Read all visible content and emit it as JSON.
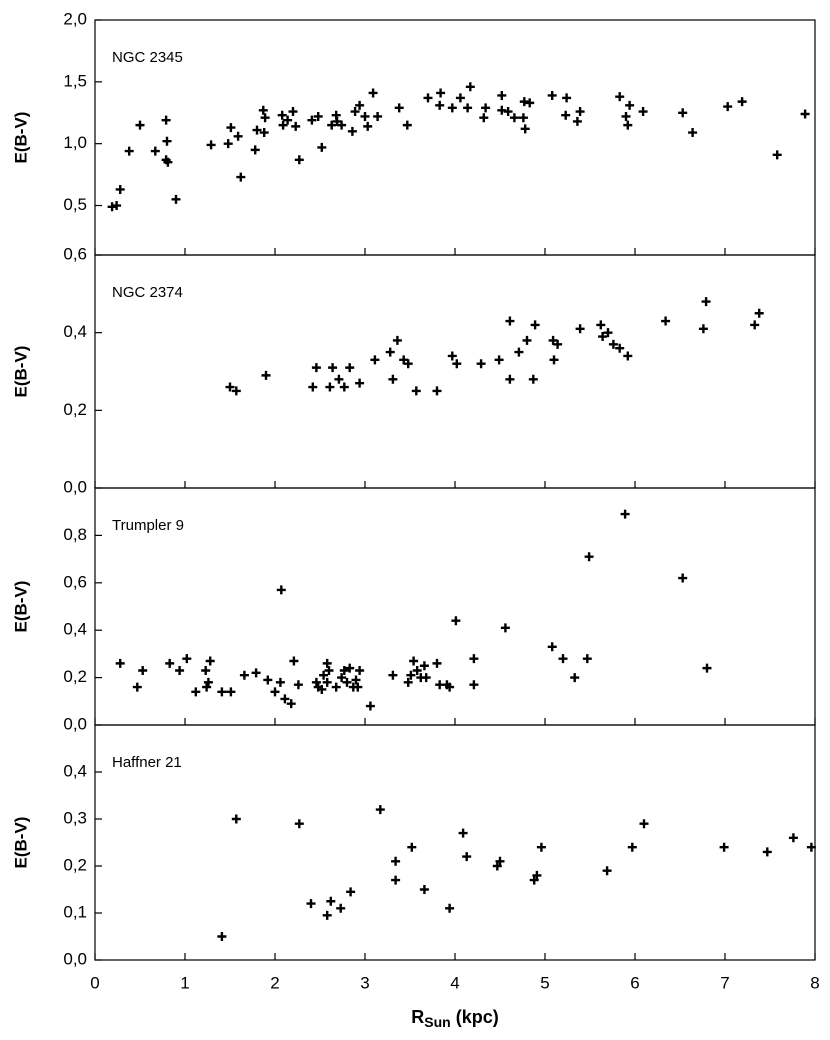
{
  "chart_data": [
    {
      "type": "scatter",
      "annotation": "NGC 2345",
      "ylabel": "E(B-V)",
      "xlim": [
        0,
        8
      ],
      "ylim": [
        0.1,
        2.0
      ],
      "yticks": [
        {
          "value": 0.5,
          "label": "0,5"
        },
        {
          "value": 1.0,
          "label": "1,0"
        },
        {
          "value": 1.5,
          "label": "1,5"
        },
        {
          "value": 2.0,
          "label": "2,0"
        }
      ],
      "color": "#000000",
      "x": [
        0.19,
        0.24,
        0.28,
        0.38,
        0.5,
        0.67,
        0.79,
        0.8,
        0.79,
        0.81,
        0.9,
        1.29,
        1.48,
        1.51,
        1.59,
        1.62,
        1.78,
        1.8,
        1.87,
        1.89,
        1.88,
        2.08,
        2.09,
        2.14,
        2.2,
        2.23,
        2.27,
        2.41,
        2.48,
        2.52,
        2.63,
        2.68,
        2.69,
        2.74,
        2.86,
        2.89,
        2.94,
        3.0,
        3.03,
        3.09,
        3.14,
        3.38,
        3.47,
        3.7,
        3.84,
        3.83,
        3.97,
        4.06,
        4.14,
        4.17,
        4.32,
        4.34,
        4.52,
        4.52,
        4.59,
        4.66,
        4.76,
        4.77,
        4.78,
        4.83,
        5.08,
        5.23,
        5.24,
        5.36,
        5.39,
        5.83,
        5.9,
        5.92,
        5.94,
        6.09,
        6.53,
        6.64,
        7.03,
        7.19,
        7.58,
        7.89
      ],
      "y": [
        0.49,
        0.5,
        0.63,
        0.94,
        1.15,
        0.94,
        1.19,
        1.02,
        0.87,
        0.85,
        0.55,
        0.99,
        1.0,
        1.13,
        1.06,
        0.73,
        0.95,
        1.11,
        1.27,
        1.21,
        1.09,
        1.23,
        1.15,
        1.19,
        1.26,
        1.14,
        0.87,
        1.19,
        1.22,
        0.97,
        1.15,
        1.23,
        1.18,
        1.15,
        1.1,
        1.26,
        1.31,
        1.22,
        1.14,
        1.41,
        1.22,
        1.29,
        1.15,
        1.37,
        1.41,
        1.31,
        1.29,
        1.37,
        1.29,
        1.46,
        1.21,
        1.29,
        1.39,
        1.27,
        1.26,
        1.21,
        1.21,
        1.34,
        1.12,
        1.33,
        1.39,
        1.23,
        1.37,
        1.18,
        1.26,
        1.38,
        1.22,
        1.15,
        1.31,
        1.26,
        1.25,
        1.09,
        1.3,
        1.34,
        0.91,
        1.24
      ]
    },
    {
      "type": "scatter",
      "annotation": "NGC 2374",
      "ylabel": "E(B-V)",
      "xlim": [
        0,
        8
      ],
      "ylim": [
        0,
        0.6
      ],
      "yticks": [
        {
          "value": 0,
          "label": "0,0"
        },
        {
          "value": 0.2,
          "label": "0,2"
        },
        {
          "value": 0.4,
          "label": "0,4"
        },
        {
          "value": 0.6,
          "label": "0,6"
        }
      ],
      "color": "#000000",
      "x": [
        1.5,
        1.57,
        1.9,
        2.42,
        2.46,
        2.61,
        2.64,
        2.71,
        2.77,
        2.83,
        2.94,
        3.11,
        3.28,
        3.31,
        3.36,
        3.43,
        3.48,
        3.57,
        3.8,
        3.97,
        4.02,
        4.29,
        4.49,
        4.61,
        4.61,
        4.71,
        4.8,
        4.87,
        4.89,
        5.1,
        5.09,
        5.14,
        5.39,
        5.62,
        5.64,
        5.7,
        5.76,
        5.83,
        5.92,
        6.34,
        6.76,
        6.79,
        7.33,
        7.38
      ],
      "y": [
        0.26,
        0.25,
        0.29,
        0.26,
        0.31,
        0.26,
        0.31,
        0.28,
        0.26,
        0.31,
        0.27,
        0.33,
        0.35,
        0.28,
        0.38,
        0.33,
        0.32,
        0.25,
        0.25,
        0.34,
        0.32,
        0.32,
        0.33,
        0.28,
        0.43,
        0.35,
        0.38,
        0.28,
        0.42,
        0.33,
        0.38,
        0.37,
        0.41,
        0.42,
        0.39,
        0.4,
        0.37,
        0.36,
        0.34,
        0.43,
        0.41,
        0.48,
        0.42,
        0.45
      ]
    },
    {
      "type": "scatter",
      "annotation": "Trumpler 9",
      "ylabel": "E(B-V)",
      "xlim": [
        0,
        8
      ],
      "ylim": [
        0,
        1.0
      ],
      "yticks": [
        {
          "value": 0,
          "label": "0,0"
        },
        {
          "value": 0.2,
          "label": "0,2"
        },
        {
          "value": 0.4,
          "label": "0,4"
        },
        {
          "value": 0.6,
          "label": "0,6"
        },
        {
          "value": 0.8,
          "label": "0,8"
        }
      ],
      "color": "#000000",
      "x": [
        0.28,
        0.47,
        0.53,
        0.83,
        0.94,
        1.02,
        1.12,
        1.23,
        1.26,
        1.28,
        1.24,
        1.41,
        1.51,
        1.66,
        1.79,
        1.92,
        2.0,
        2.06,
        2.07,
        2.11,
        2.18,
        2.21,
        2.26,
        2.46,
        2.48,
        2.52,
        2.54,
        2.58,
        2.6,
        2.58,
        2.68,
        2.74,
        2.77,
        2.8,
        2.83,
        2.87,
        2.9,
        2.94,
        2.92,
        3.06,
        3.31,
        3.48,
        3.51,
        3.54,
        3.58,
        3.62,
        3.66,
        3.68,
        3.8,
        3.83,
        3.91,
        3.94,
        4.01,
        4.21,
        4.21,
        4.56,
        5.08,
        5.2,
        5.33,
        5.47,
        5.49,
        5.89,
        6.53,
        6.8
      ],
      "y": [
        0.26,
        0.16,
        0.23,
        0.26,
        0.23,
        0.28,
        0.14,
        0.23,
        0.18,
        0.27,
        0.16,
        0.14,
        0.14,
        0.21,
        0.22,
        0.19,
        0.14,
        0.18,
        0.57,
        0.11,
        0.09,
        0.27,
        0.17,
        0.18,
        0.16,
        0.15,
        0.21,
        0.26,
        0.23,
        0.18,
        0.16,
        0.2,
        0.23,
        0.18,
        0.24,
        0.16,
        0.19,
        0.23,
        0.16,
        0.08,
        0.21,
        0.18,
        0.21,
        0.27,
        0.23,
        0.2,
        0.25,
        0.2,
        0.26,
        0.17,
        0.17,
        0.16,
        0.44,
        0.28,
        0.17,
        0.41,
        0.33,
        0.28,
        0.2,
        0.28,
        0.71,
        0.89,
        0.62,
        0.24
      ]
    },
    {
      "type": "scatter",
      "annotation": "Haffner 21",
      "ylabel": "E(B-V)",
      "xlim": [
        0,
        8
      ],
      "ylim": [
        0,
        0.5
      ],
      "yticks": [
        {
          "value": 0,
          "label": "0,0"
        },
        {
          "value": 0.1,
          "label": "0,1"
        },
        {
          "value": 0.2,
          "label": "0,2"
        },
        {
          "value": 0.3,
          "label": "0,3"
        },
        {
          "value": 0.4,
          "label": "0,4"
        }
      ],
      "xticks": [
        0,
        1,
        2,
        3,
        4,
        5,
        6,
        7,
        8
      ],
      "xlabel_main": "R",
      "xlabel_sub": "Sun",
      "xlabel_rest": "(kpc)",
      "color": "#000000",
      "x": [
        1.41,
        1.57,
        2.27,
        2.4,
        2.58,
        2.62,
        2.73,
        2.84,
        3.17,
        3.34,
        3.34,
        3.52,
        3.66,
        3.94,
        4.09,
        4.13,
        4.47,
        4.5,
        4.88,
        4.91,
        4.96,
        5.69,
        5.97,
        6.1,
        6.99,
        7.47,
        7.76,
        7.96
      ],
      "y": [
        0.05,
        0.3,
        0.29,
        0.12,
        0.095,
        0.125,
        0.11,
        0.145,
        0.32,
        0.21,
        0.17,
        0.24,
        0.15,
        0.11,
        0.27,
        0.22,
        0.2,
        0.21,
        0.17,
        0.18,
        0.24,
        0.19,
        0.24,
        0.29,
        0.24,
        0.23,
        0.26,
        0.24
      ]
    }
  ]
}
